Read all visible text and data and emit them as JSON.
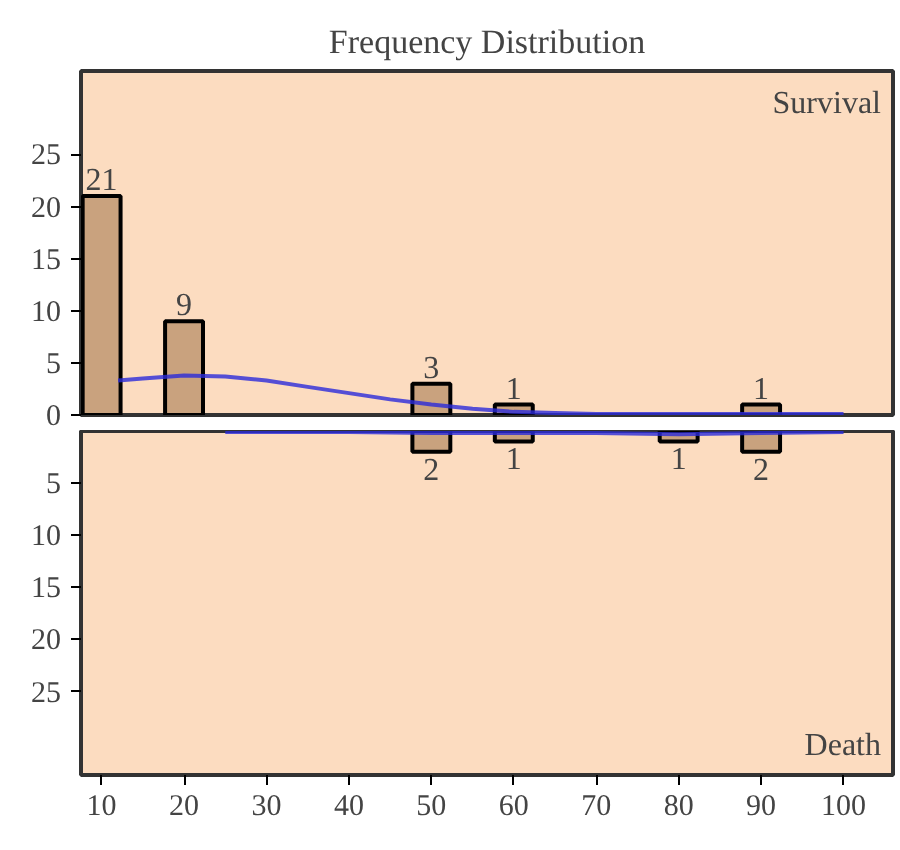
{
  "chart_data": [
    {
      "type": "bar",
      "title": "Frequency Distribution",
      "color": "#c9a27e",
      "series": [
        {
          "x": [
            10,
            20,
            50,
            60,
            90
          ],
          "values": [
            21,
            9,
            3,
            1,
            1
          ],
          "value_labels": [
            "21",
            "9",
            "3",
            "1",
            "1"
          ]
        },
        {
          "type": "line",
          "color": "#2b2bd9",
          "x": [
            12,
            15,
            20,
            25,
            30,
            35,
            40,
            45,
            50,
            55,
            60,
            65,
            70,
            80,
            90,
            100
          ],
          "values": [
            3.3,
            3.5,
            3.8,
            3.7,
            3.3,
            2.7,
            2.1,
            1.5,
            1.0,
            0.6,
            0.3,
            0.2,
            0.1,
            0.1,
            0.1,
            0.1
          ]
        }
      ],
      "annotations": [
        "Survival"
      ],
      "xlim": [
        7.5,
        106
      ],
      "ylim": [
        0,
        33
      ],
      "yticks": [
        0,
        5,
        10,
        15,
        20,
        25
      ],
      "tick_labels": "y"
    },
    {
      "type": "bar",
      "color": "#c9a27e",
      "series": [
        {
          "x": [
            50,
            60,
            80,
            90
          ],
          "values": [
            2,
            1,
            1,
            2
          ],
          "value_labels": [
            "2",
            "1",
            "1",
            "2"
          ]
        },
        {
          "type": "line",
          "color": "#2b2bd9",
          "x": [
            25,
            40,
            50,
            60,
            70,
            80,
            90,
            100
          ],
          "values": [
            0.1,
            0.1,
            0.2,
            0.2,
            0.2,
            0.3,
            0.2,
            0.1
          ]
        }
      ],
      "annotations": [
        "Death"
      ],
      "xlim": [
        7.5,
        106
      ],
      "xticks": [
        10,
        20,
        30,
        40,
        50,
        60,
        70,
        80,
        90,
        100
      ],
      "ylim": [
        33,
        0
      ],
      "yticks": [
        5,
        10,
        15,
        20,
        25
      ]
    }
  ]
}
